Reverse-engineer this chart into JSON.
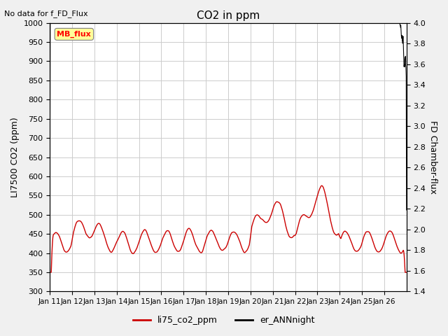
{
  "title": "CO2 in ppm",
  "subtitle": "No data for f_FD_Flux",
  "ylabel_left": "LI7500 CO2 (ppm)",
  "ylabel_right": "FD Chamber-flux",
  "ylim_left": [
    300,
    1000
  ],
  "ylim_right": [
    1.4,
    4.0
  ],
  "yticks_left": [
    300,
    350,
    400,
    450,
    500,
    550,
    600,
    650,
    700,
    750,
    800,
    850,
    900,
    950,
    1000
  ],
  "yticks_right": [
    1.4,
    1.6,
    1.8,
    2.0,
    2.2,
    2.4,
    2.6,
    2.8,
    3.0,
    3.2,
    3.4,
    3.6,
    3.8,
    4.0
  ],
  "xtick_labels": [
    "Jan 11",
    "Jan 12",
    "Jan 13",
    "Jan 14",
    "Jan 15",
    "Jan 16",
    "Jan 17",
    "Jan 18",
    "Jan 19",
    "Jan 20",
    "Jan 21",
    "Jan 22",
    "Jan 23",
    "Jan 24",
    "Jan 25",
    "Jan 26"
  ],
  "legend_label_red": "li75_co2_ppm",
  "legend_label_black": "er_ANNnight",
  "mb_flux_box_label": "MB_flux",
  "line_red_color": "#cc0000",
  "line_black_color": "#000000",
  "background_color": "#f0f0f0",
  "plot_bg_color": "#ffffff",
  "grid_color": "#cccccc"
}
